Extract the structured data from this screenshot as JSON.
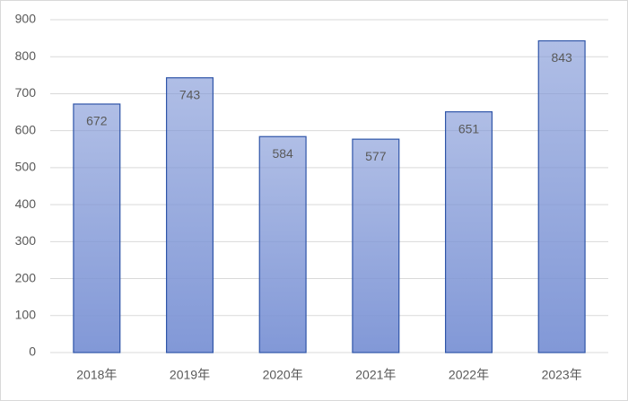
{
  "chart_data": {
    "type": "bar",
    "categories": [
      "2018年",
      "2019年",
      "2020年",
      "2021年",
      "2022年",
      "2023年"
    ],
    "values": [
      672,
      743,
      584,
      577,
      651,
      843
    ],
    "color": "#7f96d6",
    "ylim": [
      0,
      900
    ],
    "yticks": [
      0,
      100,
      200,
      300,
      400,
      500,
      600,
      700,
      800,
      900
    ],
    "grid": true
  }
}
